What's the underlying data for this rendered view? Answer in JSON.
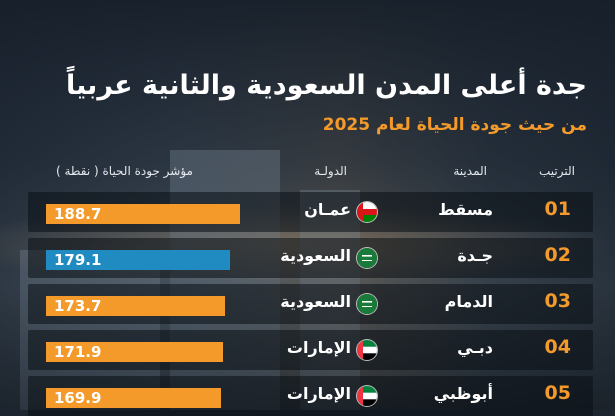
{
  "title": "جدة أعلى المدن السعودية والثانية عربياً",
  "subtitle": "من حيث جودة الحياة لعام 2025",
  "headers": {
    "rank": "الترتيب",
    "city": "المدينة",
    "country": "الدولـة",
    "index": "مؤشر جودة الحياة ( نقطة )"
  },
  "colors": {
    "accent": "#f39a2b",
    "highlight": "#1f8bc0"
  },
  "chart_data": {
    "type": "bar",
    "title": "جدة أعلى المدن السعودية والثانية عربياً",
    "subtitle": "من حيث جودة الحياة لعام 2025",
    "categories": [
      "مسقط",
      "جـدة",
      "الدمام",
      "دبـي",
      "أبوظبي"
    ],
    "values": [
      188.7,
      179.1,
      173.7,
      171.9,
      169.9
    ],
    "rows": [
      {
        "rank": "01",
        "city": "مسقط",
        "country": "عمـان",
        "flag": "oman-flag-icon",
        "value": 188.7,
        "display": "188.7",
        "highlight": false
      },
      {
        "rank": "02",
        "city": "جـدة",
        "country": "السعودية",
        "flag": "saudi-flag-icon",
        "value": 179.1,
        "display": "179.1",
        "highlight": true
      },
      {
        "rank": "03",
        "city": "الدمام",
        "country": "السعودية",
        "flag": "saudi-flag-icon",
        "value": 173.7,
        "display": "173.7",
        "highlight": false
      },
      {
        "rank": "04",
        "city": "دبـي",
        "country": "الإمارات",
        "flag": "uae-flag-icon",
        "value": 171.9,
        "display": "171.9",
        "highlight": false
      },
      {
        "rank": "05",
        "city": "أبوظبي",
        "country": "الإمارات",
        "flag": "uae-flag-icon",
        "value": 169.9,
        "display": "169.9",
        "highlight": false
      }
    ]
  }
}
